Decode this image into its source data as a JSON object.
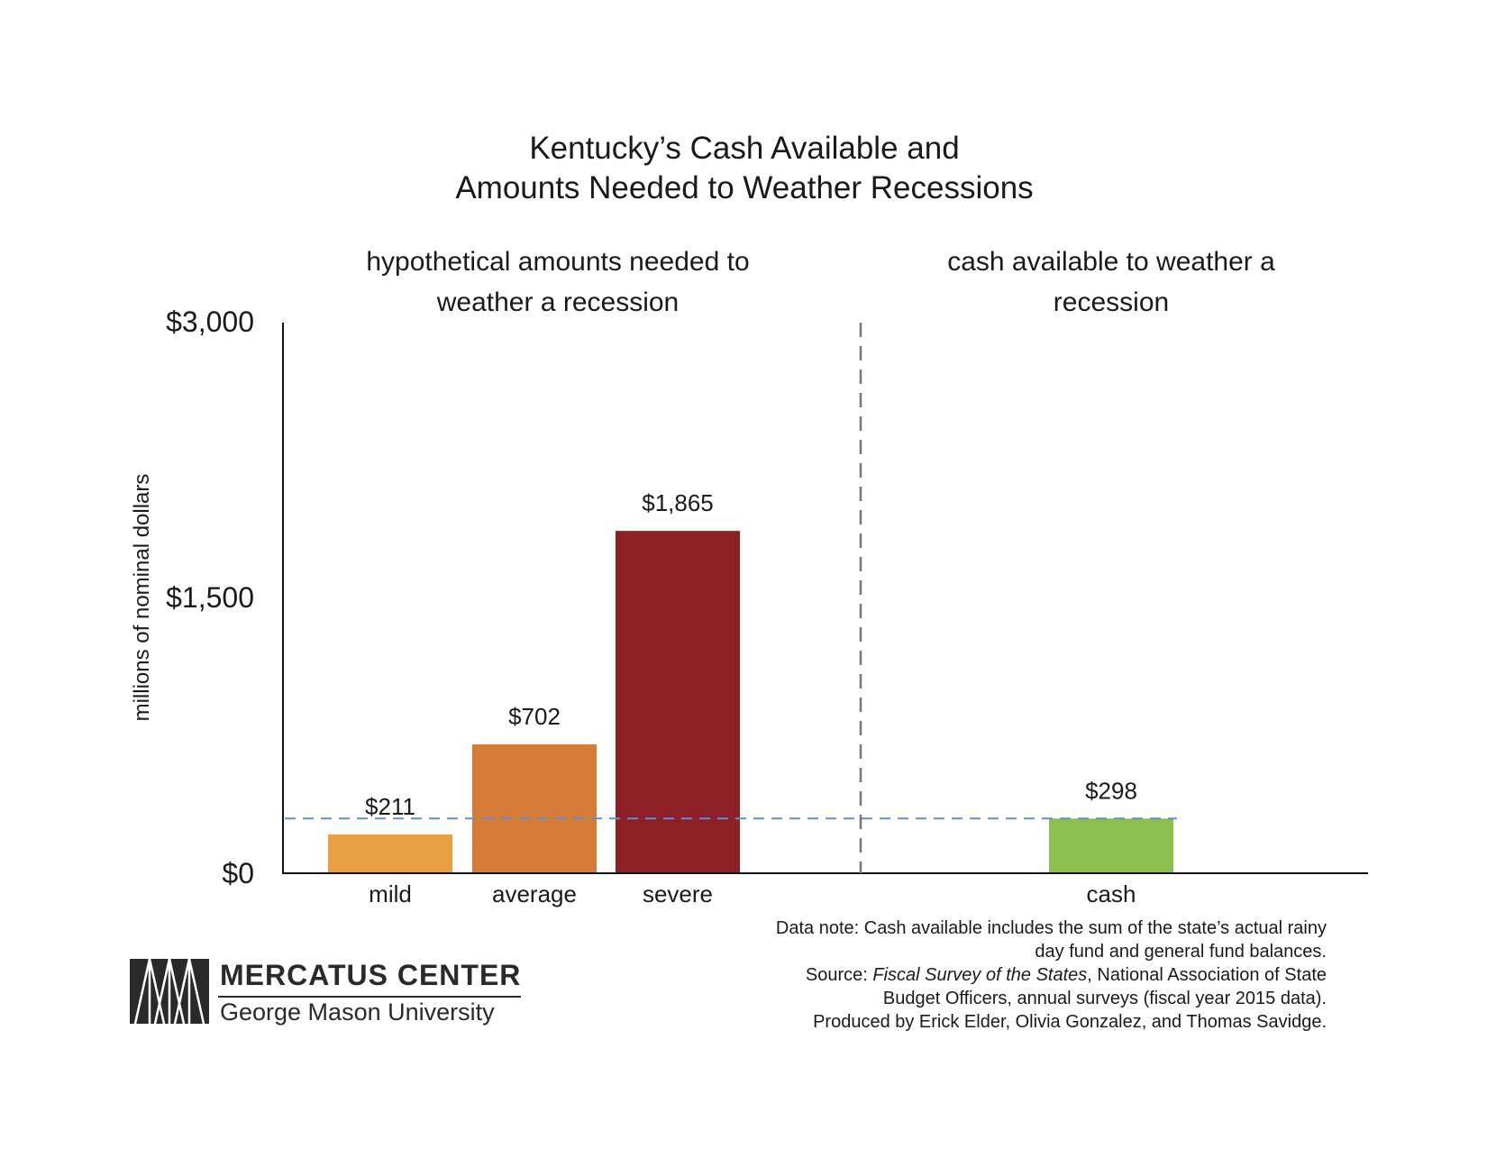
{
  "chart_data": {
    "type": "bar",
    "title_lines": [
      "Kentucky’s Cash Available and",
      "Amounts Needed to Weather Recessions"
    ],
    "ylabel": "millions of nominal dollars",
    "ylim": [
      0,
      3000
    ],
    "yticks": [
      {
        "value": 0,
        "label": "$0"
      },
      {
        "value": 1500,
        "label": "$1,500"
      },
      {
        "value": 3000,
        "label": "$3,000"
      }
    ],
    "sections": [
      {
        "lines": [
          "hypothetical amounts needed to",
          "weather a recession"
        ]
      },
      {
        "lines": [
          "cash available to weather a",
          "recession"
        ]
      }
    ],
    "categories": [
      "mild",
      "average",
      "severe",
      "cash"
    ],
    "values": [
      211,
      702,
      1865,
      298
    ],
    "value_labels": [
      "$211",
      "$702",
      "$1,865",
      "$298"
    ],
    "colors": [
      "#e8a042",
      "#d47b38",
      "#8e1f27",
      "#8bbf4e"
    ],
    "reference_line": {
      "value": 298,
      "style": "dashed",
      "color": "#5b8fd9"
    },
    "divider": {
      "style": "dashed",
      "color": "#777777"
    }
  },
  "notes": [
    "Data note: Cash available includes the sum of the state’s actual rainy",
    "day fund and general fund balances."
  ],
  "source": {
    "prefix": "Source: ",
    "publication": "Fiscal Survey of the States",
    "rest_line1": ", National Association of State",
    "line2": "Budget Officers, annual surveys (fiscal year 2015 data)."
  },
  "credit": "Produced by Erick Elder, Olivia Gonzalez, and Thomas Savidge.",
  "logo": {
    "name": "MERCATUS CENTER",
    "subtitle": "George Mason University",
    "icon": "mercatus-logo-icon"
  }
}
